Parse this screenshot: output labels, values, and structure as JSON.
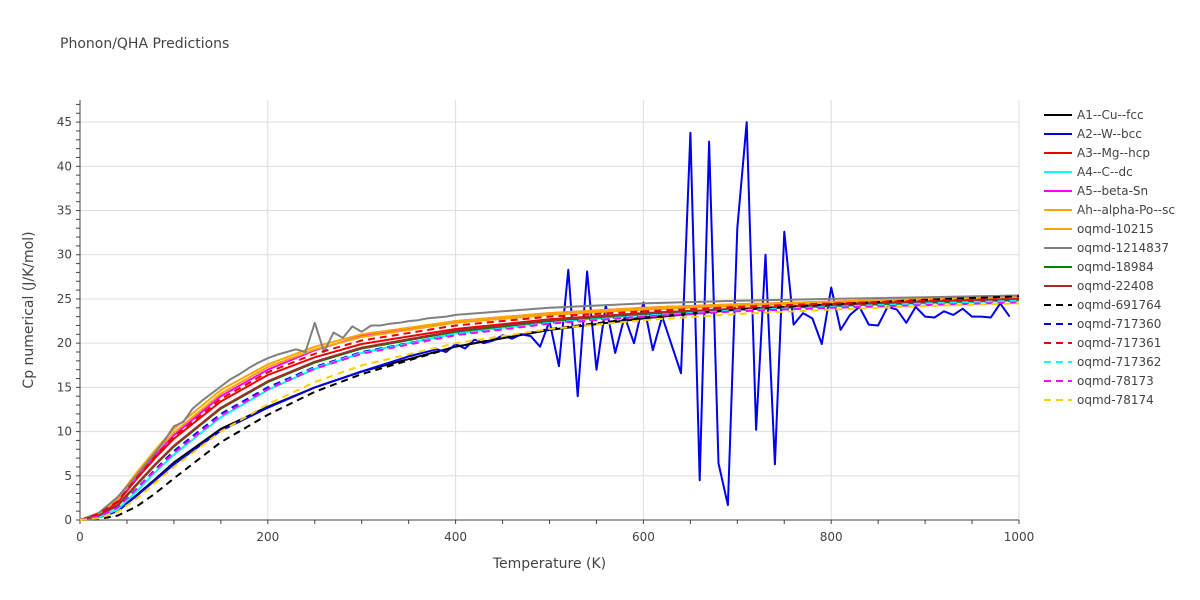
{
  "chart_data": {
    "type": "line",
    "title": "Phonon/QHA Predictions",
    "xlabel": "Temperature (K)",
    "ylabel": "Cp numerical (J/K/mol)",
    "xlim": [
      0,
      1000
    ],
    "ylim": [
      0,
      47.5
    ],
    "xticks": [
      0,
      200,
      400,
      600,
      800,
      1000
    ],
    "yticks": [
      0,
      5,
      10,
      15,
      20,
      25,
      30,
      35,
      40,
      45
    ],
    "grid": true,
    "legend_position": "right",
    "series": [
      {
        "name": "A1--Cu--fcc",
        "color": "#000000",
        "dash": "solid",
        "x": [
          0,
          20,
          40,
          60,
          80,
          100,
          150,
          200,
          250,
          300,
          400,
          500,
          600,
          700,
          800,
          900,
          1000
        ],
        "y": [
          0,
          0.3,
          1.0,
          2.8,
          4.6,
          6.5,
          10.3,
          12.8,
          15.0,
          16.8,
          19.6,
          21.5,
          22.8,
          23.8,
          24.4,
          24.9,
          25.3
        ]
      },
      {
        "name": "A2--W--bcc",
        "color": "#0000ee",
        "dash": "solid",
        "x": [
          0,
          20,
          40,
          60,
          80,
          100,
          150,
          200,
          250,
          300,
          350,
          380,
          390,
          400,
          410,
          420,
          430,
          440,
          450,
          460,
          470,
          480,
          490,
          500,
          510,
          520,
          530,
          540,
          550,
          560,
          570,
          580,
          590,
          600,
          610,
          620,
          640,
          650,
          660,
          670,
          680,
          690,
          700,
          710,
          720,
          730,
          740,
          750,
          760,
          770,
          780,
          790,
          800,
          810,
          820,
          830,
          840,
          850,
          860,
          870,
          880,
          890,
          900,
          910,
          920,
          930,
          940,
          950,
          960,
          970,
          980,
          990
        ],
        "y": [
          0,
          0.3,
          1.0,
          2.7,
          4.5,
          6.3,
          10.1,
          12.7,
          15.0,
          16.8,
          18.5,
          19.3,
          19.0,
          19.9,
          19.4,
          20.4,
          20.0,
          20.3,
          20.9,
          20.5,
          21.0,
          20.8,
          19.6,
          22.5,
          17.4,
          28.3,
          14.0,
          28.1,
          17.0,
          24.3,
          18.9,
          23.0,
          20.0,
          24.6,
          19.2,
          23.0,
          16.6,
          43.8,
          4.5,
          42.8,
          6.4,
          1.7,
          33.0,
          45.0,
          10.2,
          30.0,
          6.3,
          32.6,
          22.1,
          23.4,
          22.8,
          19.9,
          26.3,
          21.5,
          23.2,
          24.1,
          22.1,
          22.0,
          24.1,
          23.8,
          22.3,
          24.1,
          23.0,
          22.9,
          23.6,
          23.2,
          23.9,
          23.0,
          23.0,
          22.9,
          24.5,
          23.0
        ]
      },
      {
        "name": "A3--Mg--hcp",
        "color": "#ee0000",
        "dash": "solid",
        "x": [
          0,
          20,
          40,
          60,
          80,
          100,
          150,
          200,
          250,
          300,
          400,
          500,
          600,
          700,
          800,
          900,
          1000
        ],
        "y": [
          0,
          0.6,
          2.0,
          4.6,
          7.0,
          9.2,
          13.4,
          16.4,
          18.4,
          19.9,
          21.6,
          22.7,
          23.4,
          23.9,
          24.3,
          24.6,
          24.9
        ]
      },
      {
        "name": "A4--C--dc",
        "color": "#00ffff",
        "dash": "solid",
        "x": [
          0,
          20,
          40,
          60,
          80,
          100,
          150,
          200,
          250,
          300,
          400,
          500,
          600,
          700,
          800,
          900,
          1000
        ],
        "y": [
          0,
          0.3,
          1.2,
          3.2,
          5.4,
          7.4,
          11.6,
          14.7,
          17.1,
          18.9,
          21.1,
          22.4,
          23.2,
          23.8,
          24.2,
          24.5,
          24.8
        ]
      },
      {
        "name": "A5--beta-Sn",
        "color": "#ff00ff",
        "dash": "solid",
        "x": [
          0,
          20,
          40,
          60,
          80,
          100,
          150,
          200,
          250,
          300,
          400,
          500,
          600,
          700,
          800,
          900,
          1000
        ],
        "y": [
          0,
          0.7,
          2.2,
          4.8,
          7.3,
          9.6,
          14.0,
          17.0,
          19.2,
          20.8,
          22.5,
          23.4,
          24.0,
          24.4,
          24.7,
          25.0,
          25.2
        ]
      },
      {
        "name": "Ah--alpha-Po--sc",
        "color": "#ffa500",
        "dash": "solid",
        "x": [
          0,
          20,
          40,
          60,
          80,
          100,
          150,
          200,
          250,
          300,
          400,
          500,
          600,
          700,
          800,
          900,
          1000
        ],
        "y": [
          0,
          0.7,
          2.3,
          5.0,
          7.6,
          9.9,
          14.3,
          17.3,
          19.3,
          20.7,
          22.3,
          23.2,
          23.8,
          24.2,
          24.6,
          24.9,
          25.1
        ]
      },
      {
        "name": "oqmd-10215",
        "color": "#ffa500",
        "dash": "solid",
        "x": [
          0,
          20,
          40,
          60,
          80,
          100,
          150,
          200,
          250,
          300,
          400,
          500,
          600,
          700,
          800,
          900,
          1000
        ],
        "y": [
          0,
          0.8,
          2.5,
          5.3,
          7.9,
          10.3,
          14.7,
          17.6,
          19.6,
          21.0,
          22.5,
          23.4,
          24.0,
          24.4,
          24.7,
          25.0,
          25.2
        ]
      },
      {
        "name": "oqmd-1214837",
        "color": "#808080",
        "dash": "solid",
        "x": [
          0,
          20,
          40,
          60,
          70,
          80,
          90,
          100,
          110,
          120,
          130,
          140,
          150,
          160,
          170,
          180,
          190,
          200,
          210,
          220,
          230,
          240,
          250,
          260,
          270,
          280,
          290,
          300,
          310,
          320,
          330,
          340,
          350,
          360,
          370,
          380,
          390,
          400,
          450,
          500,
          600,
          700,
          800,
          900,
          1000
        ],
        "y": [
          0,
          0.8,
          2.6,
          5.0,
          6.3,
          7.6,
          9.0,
          10.6,
          11.1,
          12.6,
          13.5,
          14.3,
          15.1,
          15.9,
          16.5,
          17.2,
          17.8,
          18.3,
          18.7,
          19.0,
          19.3,
          19.0,
          22.3,
          19.0,
          21.2,
          20.6,
          21.9,
          21.3,
          22.0,
          22.0,
          22.2,
          22.3,
          22.5,
          22.6,
          22.8,
          22.9,
          23.0,
          23.2,
          23.6,
          24.0,
          24.5,
          24.8,
          25.0,
          25.2,
          25.4
        ]
      },
      {
        "name": "oqmd-18984",
        "color": "#008000",
        "dash": "solid",
        "x": [
          0,
          20,
          40,
          60,
          80,
          100,
          150,
          200,
          250,
          300,
          400,
          500,
          600,
          700,
          800,
          900,
          1000
        ],
        "y": [
          0,
          0.5,
          1.6,
          3.9,
          6.2,
          8.3,
          12.6,
          15.6,
          17.8,
          19.4,
          21.3,
          22.5,
          23.3,
          23.8,
          24.2,
          24.6,
          24.9
        ]
      },
      {
        "name": "oqmd-22408",
        "color": "#a52a2a",
        "dash": "solid",
        "x": [
          0,
          20,
          40,
          60,
          80,
          100,
          150,
          200,
          250,
          300,
          400,
          500,
          600,
          700,
          800,
          900,
          1000
        ],
        "y": [
          0,
          0.5,
          1.7,
          4.0,
          6.3,
          8.4,
          12.7,
          15.7,
          17.9,
          19.5,
          21.4,
          22.6,
          23.4,
          23.9,
          24.3,
          24.7,
          25.0
        ]
      },
      {
        "name": "oqmd-691764",
        "color": "#000000",
        "dash": "dash",
        "x": [
          0,
          20,
          40,
          60,
          80,
          100,
          150,
          200,
          250,
          300,
          400,
          500,
          600,
          700,
          800,
          900,
          1000
        ],
        "y": [
          0,
          0.1,
          0.5,
          1.5,
          3.0,
          4.7,
          8.8,
          11.9,
          14.5,
          16.5,
          19.6,
          21.6,
          22.9,
          23.8,
          24.4,
          24.9,
          25.3
        ]
      },
      {
        "name": "oqmd-717360",
        "color": "#0000ee",
        "dash": "dash",
        "x": [
          0,
          20,
          40,
          60,
          80,
          100,
          150,
          200,
          250,
          300,
          400,
          500,
          600,
          700,
          800,
          900,
          1000
        ],
        "y": [
          0,
          0.4,
          1.4,
          3.5,
          5.7,
          7.8,
          12.0,
          15.0,
          17.3,
          19.0,
          21.0,
          22.3,
          23.1,
          23.7,
          24.1,
          24.5,
          24.8
        ]
      },
      {
        "name": "oqmd-717361",
        "color": "#ee0000",
        "dash": "dash",
        "x": [
          0,
          20,
          40,
          60,
          80,
          100,
          150,
          200,
          250,
          300,
          400,
          500,
          600,
          700,
          800,
          900,
          1000
        ],
        "y": [
          0,
          0.7,
          2.1,
          4.7,
          7.2,
          9.4,
          13.7,
          16.7,
          18.8,
          20.3,
          22.0,
          23.0,
          23.6,
          24.1,
          24.5,
          24.8,
          25.0
        ]
      },
      {
        "name": "oqmd-717362",
        "color": "#00ffff",
        "dash": "dash",
        "x": [
          0,
          20,
          40,
          60,
          80,
          100,
          150,
          200,
          250,
          300,
          400,
          500,
          600,
          700,
          800,
          900,
          1000
        ],
        "y": [
          0,
          0.4,
          1.3,
          3.3,
          5.5,
          7.5,
          11.7,
          14.8,
          17.2,
          18.9,
          21.0,
          22.3,
          23.1,
          23.7,
          24.1,
          24.5,
          24.8
        ]
      },
      {
        "name": "oqmd-78173",
        "color": "#ff00ff",
        "dash": "dash",
        "x": [
          0,
          20,
          40,
          60,
          80,
          100,
          150,
          200,
          250,
          300,
          400,
          500,
          600,
          700,
          800,
          900,
          1000
        ],
        "y": [
          0,
          0.4,
          1.4,
          3.5,
          5.6,
          7.6,
          11.8,
          14.8,
          17.1,
          18.8,
          20.9,
          22.2,
          23.0,
          23.6,
          24.0,
          24.3,
          24.6
        ]
      },
      {
        "name": "oqmd-78174",
        "color": "#ffd000",
        "dash": "dash",
        "x": [
          0,
          20,
          40,
          60,
          80,
          100,
          150,
          200,
          250,
          300,
          400,
          500,
          600,
          700,
          800,
          900,
          1000
        ],
        "y": [
          0,
          0.2,
          0.9,
          2.4,
          4.2,
          6.0,
          10.0,
          13.1,
          15.6,
          17.5,
          20.0,
          21.6,
          22.6,
          23.3,
          23.8,
          24.2,
          24.5
        ]
      }
    ]
  }
}
